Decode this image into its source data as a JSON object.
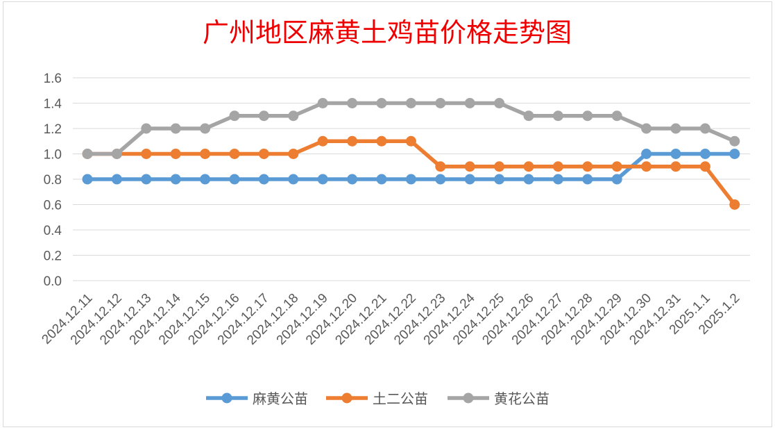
{
  "chart_data": {
    "type": "line",
    "title": "广州地区麻黄土鸡苗价格走势图",
    "categories": [
      "2024.12.11",
      "2024.12.12",
      "2024.12.13",
      "2024.12.14",
      "2024.12.15",
      "2024.12.16",
      "2024.12.17",
      "2024.12.18",
      "2024.12.19",
      "2024.12.20",
      "2024.12.21",
      "2024.12.22",
      "2024.12.23",
      "2024.12.24",
      "2024.12.25",
      "2024.12.26",
      "2024.12.27",
      "2024.12.28",
      "2024.12.29",
      "2024.12.30",
      "2024.12.31",
      "2025.1.1",
      "2025.1.2"
    ],
    "series": [
      {
        "name": "麻黄公苗",
        "color": "#5b9bd5",
        "values": [
          0.8,
          0.8,
          0.8,
          0.8,
          0.8,
          0.8,
          0.8,
          0.8,
          0.8,
          0.8,
          0.8,
          0.8,
          0.8,
          0.8,
          0.8,
          0.8,
          0.8,
          0.8,
          0.8,
          1.0,
          1.0,
          1.0,
          1.0
        ]
      },
      {
        "name": "土二公苗",
        "color": "#ed7d31",
        "values": [
          1.0,
          1.0,
          1.0,
          1.0,
          1.0,
          1.0,
          1.0,
          1.0,
          1.1,
          1.1,
          1.1,
          1.1,
          0.9,
          0.9,
          0.9,
          0.9,
          0.9,
          0.9,
          0.9,
          0.9,
          0.9,
          0.9,
          0.6
        ]
      },
      {
        "name": "黄花公苗",
        "color": "#a5a5a5",
        "values": [
          1.0,
          1.0,
          1.2,
          1.2,
          1.2,
          1.3,
          1.3,
          1.3,
          1.4,
          1.4,
          1.4,
          1.4,
          1.4,
          1.4,
          1.4,
          1.3,
          1.3,
          1.3,
          1.3,
          1.2,
          1.2,
          1.2,
          1.1
        ]
      }
    ],
    "yticks": [
      "0.0",
      "0.2",
      "0.4",
      "0.6",
      "0.8",
      "1.0",
      "1.2",
      "1.4",
      "1.6"
    ],
    "ylim": [
      0,
      1.6
    ],
    "grid": true,
    "legend_position": "bottom"
  }
}
